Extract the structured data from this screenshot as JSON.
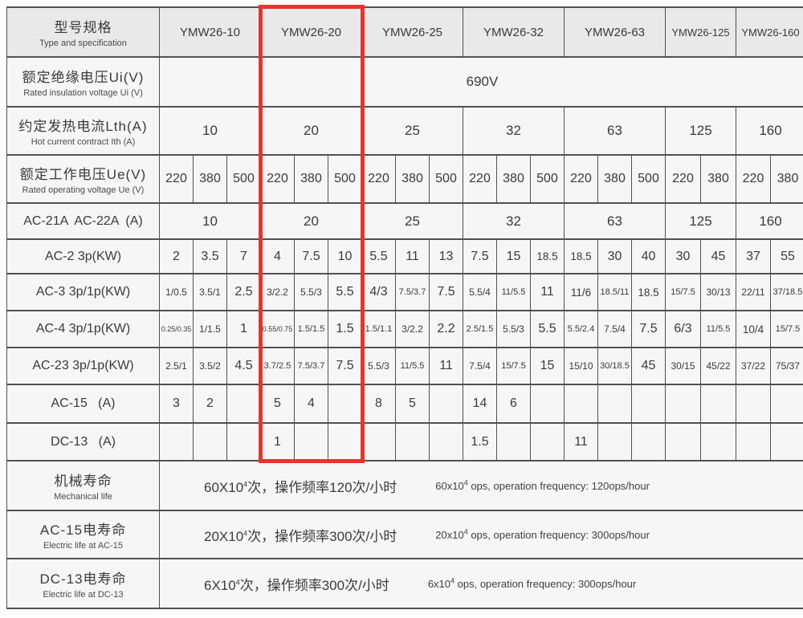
{
  "colors": {
    "red_box": "#e5352b",
    "border": "#515151",
    "header_bg": "#e9e9e9",
    "cell_bg": "#f6f6f6"
  },
  "header": {
    "zh": "型号规格",
    "en": "Type and specification",
    "models": [
      "YMW26-10",
      "YMW26-20",
      "YMW26-25",
      "YMW26-32",
      "YMW26-63",
      "YMW26-125",
      "YMW26-160"
    ],
    "highlighted_model": "YMW26-20"
  },
  "rows": {
    "ui": {
      "zh": "额定绝缘电压Ui(V)",
      "en": "Rated insulation voltage Ui (V)",
      "value": "690V"
    },
    "lth": {
      "zh": "约定发热电流Lth(A)",
      "en": "Hot current contract Ith (A)",
      "values": [
        "10",
        "20",
        "25",
        "32",
        "63",
        "125",
        "160"
      ]
    },
    "ue": {
      "zh": "额定工作电压Ue(V)",
      "en": "Rated operating voltage Ue (V)",
      "values": [
        "220",
        "380",
        "500",
        "220",
        "380",
        "500",
        "220",
        "380",
        "500",
        "220",
        "380",
        "500",
        "220",
        "380",
        "500",
        "220",
        "380",
        "220",
        "380"
      ]
    },
    "ac21": {
      "label": "AC-21A  AC-22A  (A)",
      "values": [
        "10",
        "20",
        "25",
        "32",
        "63",
        "125",
        "160"
      ]
    },
    "ac2": {
      "label": "AC-2 3p(KW)",
      "values": [
        "2",
        "3.5",
        "7",
        "4",
        "7.5",
        "10",
        "5.5",
        "11",
        "13",
        "7.5",
        "15",
        "18.5",
        "18.5",
        "30",
        "40",
        "30",
        "45",
        "37",
        "55"
      ]
    },
    "ac3": {
      "label": "AC-3 3p/1p(KW)",
      "values": [
        "1/0.5",
        "3.5/1",
        "2.5",
        "3/2.2",
        "5.5/3",
        "5.5",
        "4/3",
        "7.5/3.7",
        "7.5",
        "5.5/4",
        "11/5.5",
        "11",
        "11/6",
        "18.5/11",
        "18.5",
        "15/7.5",
        "30/13",
        "22/11",
        "37/18.5"
      ]
    },
    "ac4": {
      "label": "AC-4 3p/1p(KW)",
      "values": [
        "0.25/0.35",
        "1/1.5",
        "1",
        "0.55/0.75",
        "1.5/1.5",
        "1.5",
        "1.5/1.1",
        "3/2.2",
        "2.2",
        "2.5/1.5",
        "5.5/3",
        "5.5",
        "5.5/2.4",
        "7.5/4",
        "7.5",
        "6/3",
        "11/5.5",
        "10/4",
        "15/7.5"
      ]
    },
    "ac23": {
      "label": "AC-23 3p/1p(KW)",
      "values": [
        "2.5/1",
        "3.5/2",
        "4.5",
        "3.7/2.5",
        "7.5/3.7",
        "7.5",
        "5.5/3",
        "11/5.5",
        "11",
        "7.5/4",
        "15/7.5",
        "15",
        "15/10",
        "30/18.5",
        "45",
        "30/15",
        "45/22",
        "37/22",
        "75/37"
      ]
    },
    "ac15": {
      "label": "AC-15   (A)",
      "values": [
        "3",
        "2",
        "",
        "5",
        "4",
        "",
        "8",
        "5",
        "",
        "14",
        "6",
        "",
        "",
        "",
        "",
        "",
        "",
        "",
        ""
      ]
    },
    "dc13": {
      "label": "DC-13   (A)",
      "values": [
        "",
        "",
        "",
        "1",
        "",
        "",
        "",
        "",
        "",
        "1.5",
        "",
        "",
        "11",
        "",
        "",
        "",
        "",
        "",
        ""
      ]
    },
    "mech": {
      "zh": "机械寿命",
      "en": "Mechanical life",
      "spec": {
        "zh_prefix": "60X10",
        "zh_sup": "4",
        "zh_suffix": "次，操作频率120次/小时",
        "en_prefix": "60x10",
        "en_sup": "4",
        "en_suffix": " ops, operation frequency: 120ops/hour"
      }
    },
    "life_ac15": {
      "zh": "AC-15电寿命",
      "en": "Electric life at AC-15",
      "spec": {
        "zh_prefix": "20X10",
        "zh_sup": "4",
        "zh_suffix": "次，操作频率300次/小时",
        "en_prefix": "20x10",
        "en_sup": "4",
        "en_suffix": " ops, operation frequency: 300ops/hour"
      }
    },
    "life_dc13": {
      "zh": "DC-13电寿命",
      "en": "Electric life at DC-13",
      "spec": {
        "zh_prefix": "6X10",
        "zh_sup": "4",
        "zh_suffix": "次，操作频率300次/小时",
        "en_prefix": "6x10",
        "en_sup": "4",
        "en_suffix": " ops, operation frequency: 300ops/hour"
      }
    }
  }
}
